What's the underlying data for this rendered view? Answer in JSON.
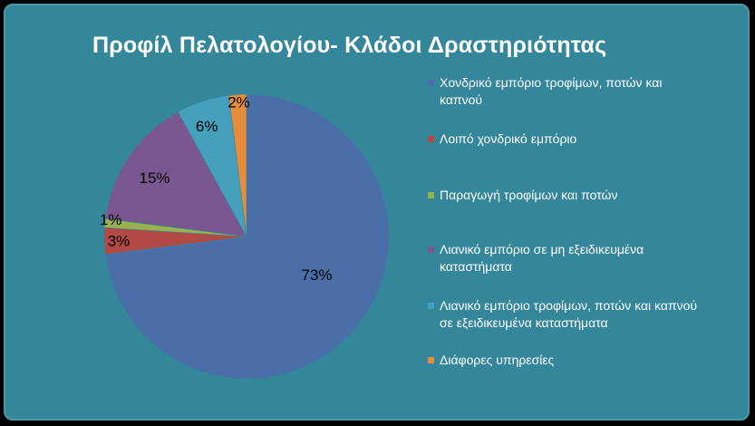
{
  "chart_data": {
    "type": "pie",
    "title": "Προφίλ Πελατολογίου-  Κλάδοι Δραστηριότητας",
    "categories": [
      "Χονδρικό εμπόριο τροφίμων, ποτών και καπνού",
      "Λοιπό χονδρικό εμπόριο",
      "Παραγωγή τροφίμων και ποτών",
      "Λιανικό εμπόριο σε μη εξειδικευμένα καταστήματα",
      "Λιανικό εμπόριο τροφίμων, ποτών και καπνού σε εξειδικευμένα καταστήματα",
      "Διάφορες υπηρεσίες"
    ],
    "values": [
      73,
      3,
      1,
      15,
      6,
      2
    ],
    "data_labels": [
      "73%",
      "3%",
      "1%",
      "15%",
      "6%",
      "2%"
    ],
    "colors": [
      "#4a6ea8",
      "#b24944",
      "#98b24f",
      "#7a5790",
      "#44a0bb",
      "#e68d3b"
    ],
    "legend_position": "right"
  }
}
